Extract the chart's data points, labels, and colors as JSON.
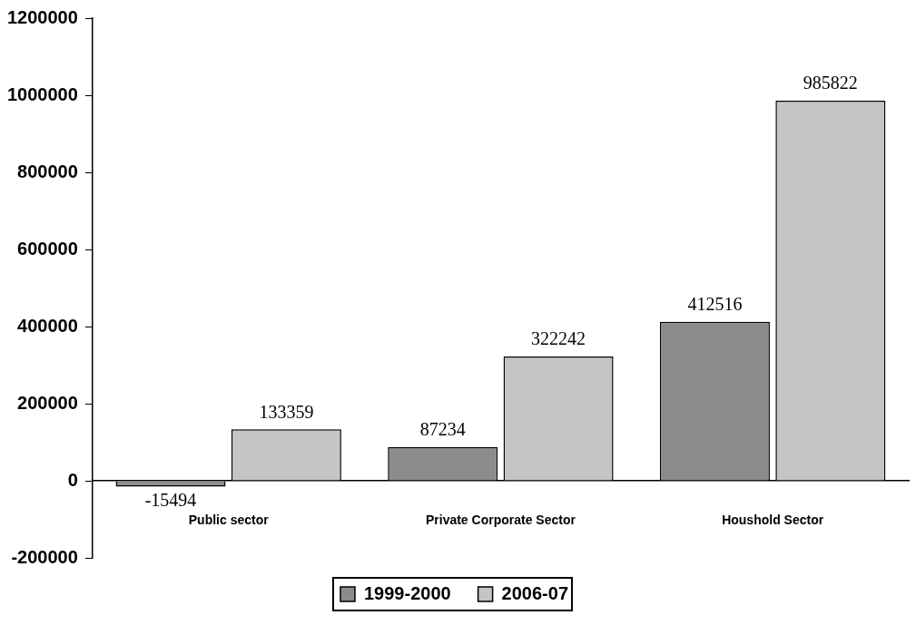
{
  "chart_data": {
    "type": "bar",
    "categories": [
      "Public sector",
      "Private Corporate Sector",
      "Houshold Sector"
    ],
    "series": [
      {
        "name": "1999-2000",
        "color": "#8c8c8c",
        "values": [
          -15494,
          87234,
          412516
        ]
      },
      {
        "name": "2006-07",
        "color": "#c4c4c4",
        "values": [
          133359,
          322242,
          985822
        ]
      }
    ],
    "ylim": [
      -200000,
      1200000
    ],
    "yticks": [
      -200000,
      0,
      200000,
      400000,
      600000,
      800000,
      1000000,
      1200000
    ],
    "grid": false,
    "legend": "bottom",
    "data_labels": true
  }
}
